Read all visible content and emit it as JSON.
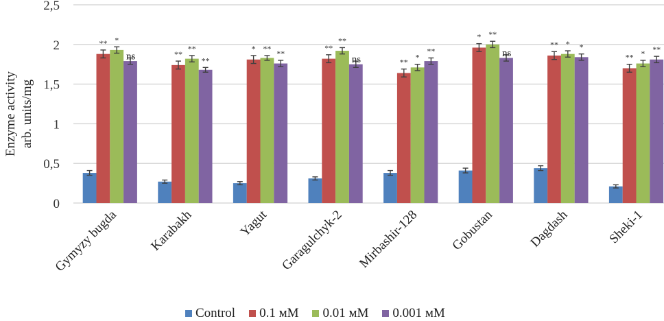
{
  "chart_data": {
    "type": "bar",
    "title": "",
    "xlabel": "",
    "ylabel": [
      "Enzyme activity",
      "arb. units/mg"
    ],
    "ylim": [
      0,
      2.5
    ],
    "yticks": [
      0,
      0.5,
      1,
      1.5,
      2,
      2.5
    ],
    "ytick_labels": [
      "0",
      "0,5",
      "1",
      "1,5",
      "2",
      "2,5"
    ],
    "grid": true,
    "legend_position": "bottom",
    "categories": [
      "Gymyzy bugda",
      "Karabakh",
      "Yagut",
      "Garagulchyk-2",
      "Mirbashir-128",
      "Gobustan",
      "Dagdash",
      "Sheki-1"
    ],
    "series": [
      {
        "name": "Control",
        "color": "#4f81bd",
        "values": [
          0.38,
          0.27,
          0.25,
          0.31,
          0.38,
          0.41,
          0.44,
          0.21
        ],
        "errors": [
          0.03,
          0.02,
          0.02,
          0.02,
          0.03,
          0.03,
          0.03,
          0.02
        ],
        "significance": [
          "",
          "",
          "",
          "",
          "",
          "",
          "",
          ""
        ]
      },
      {
        "name": "0.1 мМ",
        "color": "#c0504d",
        "values": [
          1.88,
          1.74,
          1.81,
          1.82,
          1.64,
          1.96,
          1.86,
          1.7
        ],
        "errors": [
          0.05,
          0.05,
          0.05,
          0.05,
          0.05,
          0.05,
          0.05,
          0.05
        ],
        "significance": [
          "**",
          "**",
          "*",
          "**",
          "**",
          "*",
          "**",
          "**"
        ]
      },
      {
        "name": "0.01 мМ",
        "color": "#9bbb59",
        "values": [
          1.93,
          1.82,
          1.83,
          1.92,
          1.71,
          2.0,
          1.88,
          1.76
        ],
        "errors": [
          0.04,
          0.04,
          0.03,
          0.04,
          0.04,
          0.04,
          0.04,
          0.04
        ],
        "significance": [
          "*",
          "**",
          "**",
          "**",
          "*",
          "**",
          "*",
          "*"
        ]
      },
      {
        "name": "0.001 мМ",
        "color": "#8064a2",
        "values": [
          1.79,
          1.68,
          1.76,
          1.75,
          1.79,
          1.83,
          1.84,
          1.81
        ],
        "errors": [
          0.04,
          0.03,
          0.04,
          0.04,
          0.04,
          0.04,
          0.04,
          0.04
        ],
        "significance": [
          "ns",
          "**",
          "**",
          "ns",
          "**",
          "ns",
          "*",
          "**"
        ]
      }
    ]
  }
}
